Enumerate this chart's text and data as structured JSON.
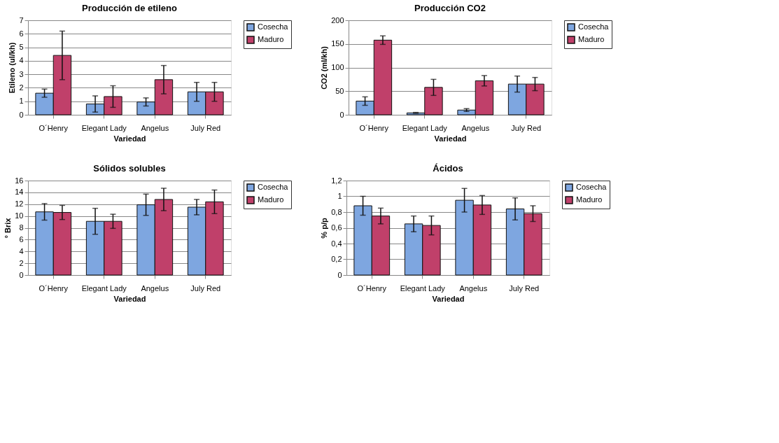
{
  "chart_data": [
    {
      "type": "bar",
      "title": "Producción de etileno",
      "xlabel": "Variedad",
      "ylabel": "Etileno (ul/kh)",
      "categories": [
        "O´Henry",
        "Elegant Lady",
        "Angelus",
        "July Red"
      ],
      "ylim": [
        0,
        7
      ],
      "yticks": [
        0,
        1,
        2,
        3,
        4,
        5,
        6,
        7
      ],
      "grid": "y",
      "legend": "right",
      "series": [
        {
          "name": "Cosecha",
          "color": "#7ea6e0",
          "values": [
            1.6,
            0.8,
            0.95,
            1.7
          ],
          "errors": [
            0.3,
            0.6,
            0.3,
            0.7
          ]
        },
        {
          "name": "Maduro",
          "color": "#c0406a",
          "values": [
            4.4,
            1.35,
            2.6,
            1.7
          ],
          "errors": [
            1.8,
            0.8,
            1.05,
            0.7
          ]
        }
      ]
    },
    {
      "type": "bar",
      "title": "Producción CO2",
      "xlabel": "Variedad",
      "ylabel": "CO2 (ml/kh)",
      "categories": [
        "O´Henry",
        "Elegant Lady",
        "Angelus",
        "July Red"
      ],
      "ylim": [
        0,
        200
      ],
      "yticks": [
        0,
        50,
        100,
        150,
        200
      ],
      "grid": "y",
      "legend": "right",
      "series": [
        {
          "name": "Cosecha",
          "color": "#7ea6e0",
          "values": [
            29,
            4,
            10,
            65
          ],
          "errors": [
            9,
            1,
            3,
            17
          ]
        },
        {
          "name": "Maduro",
          "color": "#c0406a",
          "values": [
            158,
            58,
            72,
            65
          ],
          "errors": [
            9,
            17,
            11,
            14
          ]
        }
      ]
    },
    {
      "type": "bar",
      "title": "Sólidos solubles",
      "xlabel": "Variedad",
      "ylabel": "° Brix",
      "categories": [
        "O´Henry",
        "Elegant Lady",
        "Angelus",
        "July Red"
      ],
      "ylim": [
        0,
        16
      ],
      "yticks": [
        0,
        2,
        4,
        6,
        8,
        10,
        12,
        14,
        16
      ],
      "grid": "y",
      "legend": "right",
      "series": [
        {
          "name": "Cosecha",
          "color": "#7ea6e0",
          "values": [
            10.7,
            9.1,
            11.9,
            11.5
          ],
          "errors": [
            1.4,
            2.2,
            1.8,
            1.3
          ]
        },
        {
          "name": "Maduro",
          "color": "#c0406a",
          "values": [
            10.6,
            9.1,
            12.8,
            12.4
          ],
          "errors": [
            1.2,
            1.2,
            1.9,
            2.0
          ]
        }
      ]
    },
    {
      "type": "bar",
      "title": "Ácidos",
      "xlabel": "Variedad",
      "ylabel": "% p/p",
      "categories": [
        "O´Henry",
        "Elegant Lady",
        "Angelus",
        "July Red"
      ],
      "ylim": [
        0,
        1.2
      ],
      "yticks": [
        0,
        {
          "value": 0.2,
          "label": "0,2"
        },
        {
          "value": 0.4,
          "label": "0,4"
        },
        {
          "value": 0.6,
          "label": "0,6"
        },
        {
          "value": 0.8,
          "label": "0,8"
        },
        1,
        {
          "value": 1.2,
          "label": "1,2"
        }
      ],
      "grid": "y",
      "legend": "right",
      "series": [
        {
          "name": "Cosecha",
          "color": "#7ea6e0",
          "values": [
            0.88,
            0.65,
            0.95,
            0.84
          ],
          "errors": [
            0.12,
            0.1,
            0.15,
            0.14
          ]
        },
        {
          "name": "Maduro",
          "color": "#c0406a",
          "values": [
            0.75,
            0.63,
            0.89,
            0.78
          ],
          "errors": [
            0.1,
            0.12,
            0.12,
            0.1
          ]
        }
      ]
    }
  ]
}
